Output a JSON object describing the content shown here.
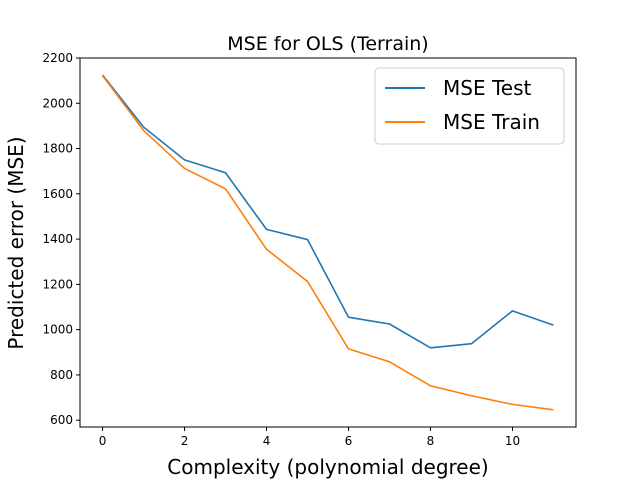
{
  "chart_data": {
    "type": "line",
    "title": "MSE for OLS (Terrain)",
    "xlabel": "Complexity (polynomial degree)",
    "ylabel": "Predicted error (MSE)",
    "xlim": [
      -0.55,
      11.55
    ],
    "ylim": [
      570,
      2200
    ],
    "xticks": [
      0,
      2,
      4,
      6,
      8,
      10
    ],
    "yticks": [
      600,
      800,
      1000,
      1200,
      1400,
      1600,
      1800,
      2000,
      2200
    ],
    "x": [
      0,
      1,
      2,
      3,
      4,
      5,
      6,
      7,
      8,
      9,
      10,
      11
    ],
    "series": [
      {
        "name": "MSE Test",
        "color": "#1f77b4",
        "values": [
          2125,
          1895,
          1750,
          1693,
          1443,
          1398,
          1055,
          1025,
          920,
          938,
          1083,
          1020
        ]
      },
      {
        "name": "MSE Train",
        "color": "#ff7f0e",
        "values": [
          2122,
          1880,
          1712,
          1622,
          1355,
          1213,
          915,
          858,
          752,
          708,
          670,
          646
        ]
      }
    ],
    "legend_position": "top-right",
    "grid": false
  }
}
